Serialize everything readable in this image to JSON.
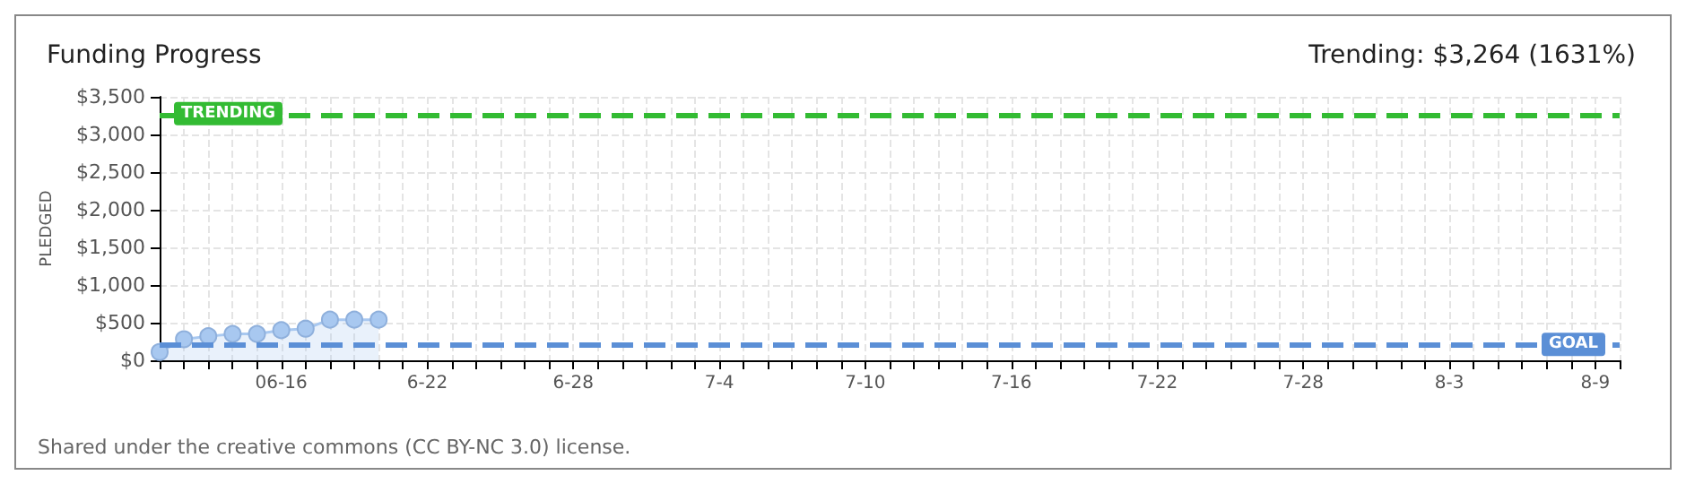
{
  "chart_data": {
    "type": "area",
    "title": "Funding Progress",
    "subtitle": "Trending: $3,264 (1631%)",
    "ylabel": "PLEDGED",
    "x": [
      "--06-11",
      "--06-12",
      "--06-13",
      "--06-14",
      "--06-15",
      "--06-16",
      "--06-17",
      "--06-18",
      "--06-19",
      "--06-20"
    ],
    "series": [
      {
        "color": "#a8c8f0",
        "values": [
          110,
          280,
          320,
          350,
          350,
          400,
          420,
          540,
          540,
          540
        ]
      }
    ],
    "marker": "circle",
    "xlim": [
      "--06-11",
      "--08-10"
    ],
    "xticks": [
      {
        "value": "--06-11",
        "label": null
      },
      {
        "value": "--06-12",
        "label": null
      },
      {
        "value": "--06-13",
        "label": null
      },
      {
        "value": "--06-14",
        "label": null
      },
      {
        "value": "--06-15",
        "label": null
      },
      {
        "value": "--06-16",
        "label": "06-16"
      },
      {
        "value": "--06-17",
        "label": null
      },
      {
        "value": "--06-18",
        "label": null
      },
      {
        "value": "--06-19",
        "label": null
      },
      {
        "value": "--06-20",
        "label": null
      },
      {
        "value": "--06-21",
        "label": null
      },
      {
        "value": "--06-22",
        "label": "6-22"
      },
      {
        "value": "--06-23",
        "label": null
      },
      {
        "value": "--06-24",
        "label": null
      },
      {
        "value": "--06-25",
        "label": null
      },
      {
        "value": "--06-26",
        "label": null
      },
      {
        "value": "--06-27",
        "label": null
      },
      {
        "value": "--06-28",
        "label": "6-28"
      },
      {
        "value": "--06-29",
        "label": null
      },
      {
        "value": "--06-30",
        "label": null
      },
      {
        "value": "--07-01",
        "label": null
      },
      {
        "value": "--07-02",
        "label": null
      },
      {
        "value": "--07-03",
        "label": null
      },
      {
        "value": "--07-04",
        "label": "7-4"
      },
      {
        "value": "--07-05",
        "label": null
      },
      {
        "value": "--07-06",
        "label": null
      },
      {
        "value": "--07-07",
        "label": null
      },
      {
        "value": "--07-08",
        "label": null
      },
      {
        "value": "--07-09",
        "label": null
      },
      {
        "value": "--07-10",
        "label": "7-10"
      },
      {
        "value": "--07-11",
        "label": null
      },
      {
        "value": "--07-12",
        "label": null
      },
      {
        "value": "--07-13",
        "label": null
      },
      {
        "value": "--07-14",
        "label": null
      },
      {
        "value": "--07-15",
        "label": null
      },
      {
        "value": "--07-16",
        "label": "7-16"
      },
      {
        "value": "--07-17",
        "label": null
      },
      {
        "value": "--07-18",
        "label": null
      },
      {
        "value": "--07-19",
        "label": null
      },
      {
        "value": "--07-20",
        "label": null
      },
      {
        "value": "--07-21",
        "label": null
      },
      {
        "value": "--07-22",
        "label": "7-22"
      },
      {
        "value": "--07-23",
        "label": null
      },
      {
        "value": "--07-24",
        "label": null
      },
      {
        "value": "--07-25",
        "label": null
      },
      {
        "value": "--07-26",
        "label": null
      },
      {
        "value": "--07-27",
        "label": null
      },
      {
        "value": "--07-28",
        "label": "7-28"
      },
      {
        "value": "--07-29",
        "label": null
      },
      {
        "value": "--07-30",
        "label": null
      },
      {
        "value": "--07-31",
        "label": null
      },
      {
        "value": "--08-01",
        "label": null
      },
      {
        "value": "--08-02",
        "label": null
      },
      {
        "value": "--08-03",
        "label": "8-3"
      },
      {
        "value": "--08-04",
        "label": null
      },
      {
        "value": "--08-05",
        "label": null
      },
      {
        "value": "--08-06",
        "label": null
      },
      {
        "value": "--08-07",
        "label": null
      },
      {
        "value": "--08-08",
        "label": null
      },
      {
        "value": "--08-09",
        "label": "8-9"
      },
      {
        "value": "--08-10",
        "label": null
      }
    ],
    "ylim": [
      0,
      3500
    ],
    "yticks": [
      {
        "value": 0,
        "label": "$0"
      },
      {
        "value": 500,
        "label": "$500"
      },
      {
        "value": 1000,
        "label": "$1,000"
      },
      {
        "value": 1500,
        "label": "$1,500"
      },
      {
        "value": 2000,
        "label": "$2,000"
      },
      {
        "value": 2500,
        "label": "$2,500"
      },
      {
        "value": 3000,
        "label": "$3,000"
      },
      {
        "value": 3500,
        "label": "$3,500"
      }
    ],
    "grid": true,
    "ref_lines": [
      {
        "axis": "y",
        "value": 3264,
        "label": "TRENDING",
        "color": "#33bb33",
        "line_style": "dashed"
      },
      {
        "axis": "y",
        "value": 200,
        "label": "GOAL",
        "color": "#5b8fd6",
        "line_style": "dashed"
      }
    ],
    "annotations": [
      "Shared under the creative commons (CC BY-NC 3.0) license."
    ]
  }
}
